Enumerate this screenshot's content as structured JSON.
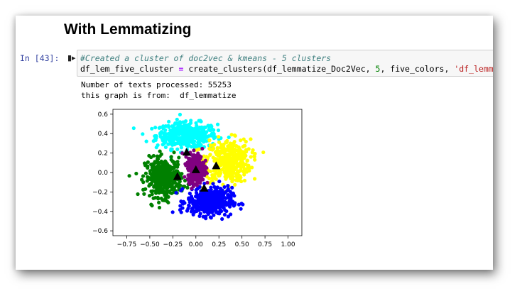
{
  "heading": "With Lemmatizing",
  "cell": {
    "prompt": "In [43]:",
    "run_icon": "run-cell-icon",
    "code_comment": "#Created a cluster of doc2vec & kmeans - 5 clusters",
    "code_var": "df_lem_five_cluster",
    "code_eq": "=",
    "code_call": "create_clusters(df_lemmatize_Doc2Vec,",
    "code_num": "5",
    "code_arg3": ", five_colors,",
    "code_str": "'df_lemmatize'",
    "code_close": ")"
  },
  "output": {
    "line1": "Number of texts processed: 55253",
    "line2": "this graph is from:  df_lemmatize"
  },
  "chart_data": {
    "type": "scatter",
    "xlim": [
      -0.9,
      1.15
    ],
    "ylim": [
      -0.65,
      0.65
    ],
    "x_ticks": [
      -0.75,
      -0.5,
      -0.25,
      0.0,
      0.25,
      0.5,
      0.75,
      1.0
    ],
    "x_tick_labels": [
      "−0.75",
      "−0.50",
      "−0.25",
      "0.00",
      "0.25",
      "0.50",
      "0.75",
      "1.00"
    ],
    "y_ticks": [
      0.6,
      0.4,
      0.2,
      0.0,
      -0.2,
      -0.4,
      -0.6
    ],
    "y_tick_labels": [
      "0.6",
      "0.4",
      "0.2",
      "0.0",
      "−0.2",
      "−0.4",
      "−0.6"
    ],
    "grid": false,
    "series": [
      {
        "color": "#00ffff",
        "center": [
          -0.1,
          0.38
        ],
        "spread": [
          0.3,
          0.12
        ]
      },
      {
        "color": "#ffff00",
        "center": [
          0.35,
          0.12
        ],
        "spread": [
          0.22,
          0.2
        ]
      },
      {
        "color": "#008000",
        "center": [
          -0.35,
          -0.05
        ],
        "spread": [
          0.18,
          0.18
        ]
      },
      {
        "color": "#0000ff",
        "center": [
          0.15,
          -0.3
        ],
        "spread": [
          0.22,
          0.13
        ]
      },
      {
        "color": "#800080",
        "center": [
          0.0,
          0.05
        ],
        "spread": [
          0.08,
          0.13
        ]
      }
    ],
    "centroids": [
      {
        "x": -0.1,
        "y": 0.21
      },
      {
        "x": 0.22,
        "y": 0.07
      },
      {
        "x": 0.0,
        "y": 0.03
      },
      {
        "x": -0.2,
        "y": -0.04
      },
      {
        "x": 0.09,
        "y": -0.16
      }
    ]
  }
}
